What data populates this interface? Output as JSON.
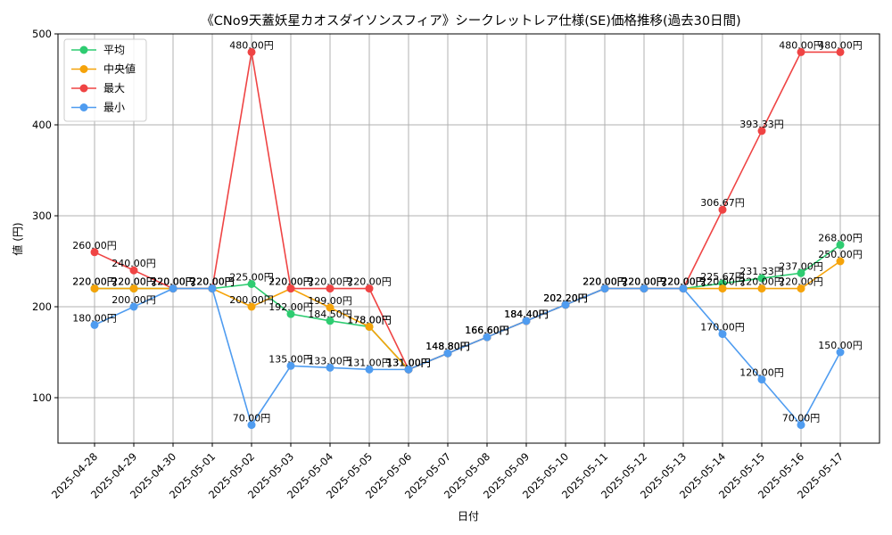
{
  "chart_data": {
    "type": "line",
    "title": "《CNo9天蓋妖星カオスダイソンスフィア》シークレットレア仕様(SE)価格推移(過去30日間)",
    "xlabel": "日付",
    "ylabel": "値 (円)",
    "ylim": [
      50,
      500
    ],
    "yticks": [
      100,
      200,
      300,
      400,
      500
    ],
    "grid": true,
    "legend_position": "top-left",
    "label_suffix": "円",
    "categories": [
      "2025-04-28",
      "2025-04-29",
      "2025-04-30",
      "2025-05-01",
      "2025-05-02",
      "2025-05-03",
      "2025-05-04",
      "2025-05-05",
      "2025-05-06",
      "2025-05-07",
      "2025-05-08",
      "2025-05-09",
      "2025-05-10",
      "2025-05-11",
      "2025-05-12",
      "2025-05-13",
      "2025-05-14",
      "2025-05-15",
      "2025-05-16",
      "2025-05-17"
    ],
    "series": [
      {
        "name": "平均",
        "color": "#2ecc71",
        "values": [
          220.0,
          220.0,
          220.0,
          220.0,
          225.0,
          192.0,
          184.5,
          178.0,
          131.0,
          148.8,
          166.6,
          184.4,
          202.2,
          220.0,
          220.0,
          220.0,
          225.67,
          231.33,
          237.0,
          268.0
        ]
      },
      {
        "name": "中央値",
        "color": "#f5a30a",
        "values": [
          220.0,
          220.0,
          220.0,
          220.0,
          200.0,
          220.0,
          199.0,
          178.0,
          131.0,
          148.8,
          166.6,
          184.4,
          202.2,
          220.0,
          220.0,
          220.0,
          220.0,
          220.0,
          220.0,
          250.0
        ]
      },
      {
        "name": "最大",
        "color": "#ef4444",
        "values": [
          260.0,
          240.0,
          220.0,
          220.0,
          480.0,
          220.0,
          220.0,
          220.0,
          131.0,
          148.8,
          166.6,
          184.4,
          202.2,
          220.0,
          220.0,
          220.0,
          306.67,
          393.33,
          480.0,
          480.0
        ]
      },
      {
        "name": "最小",
        "color": "#4f9cf0",
        "values": [
          180.0,
          200.0,
          220.0,
          220.0,
          70.0,
          135.0,
          133.0,
          131.0,
          131.0,
          148.8,
          166.6,
          184.4,
          202.2,
          220.0,
          220.0,
          220.0,
          170.0,
          120.0,
          70.0,
          150.0
        ]
      }
    ]
  }
}
